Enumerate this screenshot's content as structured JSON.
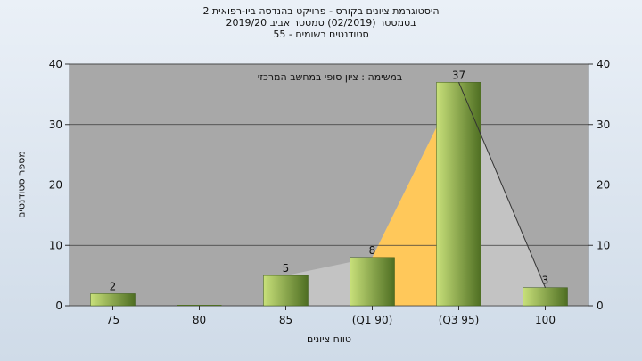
{
  "title_lines": [
    "היסטוגרמת ציונים בקורס - פרויקט בהנדסה ביו-רפואית 2",
    "בסמסטר  (02/2019)  סמסטר אביב 2019/20",
    "סטודנטים רשומים - 55"
  ],
  "chart_data": {
    "type": "bar",
    "title": "היסטוגרמת ציונים בקורס - פרויקט בהנדסה ביו-רפואית 2",
    "annotation": "במשימה : ציון סופי במחשב המרכזי",
    "xlabel": "טווח ציונים",
    "ylabel": "מספר סטודנטים",
    "categories": [
      "75",
      "80",
      "85",
      "(Q1 90)",
      "(Q3 95)",
      "100"
    ],
    "values": [
      2,
      0,
      5,
      8,
      37,
      3
    ],
    "data_labels": [
      "2",
      "",
      "5",
      "8",
      "37",
      "3"
    ],
    "ylim": [
      0,
      40
    ],
    "yticks": [
      0,
      10,
      20,
      30,
      40
    ],
    "ytick_labels": [
      "0",
      "10",
      "20",
      "30",
      "40"
    ],
    "grid": true,
    "secondary_y_axis": true,
    "colors": {
      "plot_bg": "#a8a8a8",
      "bar_light": "#c8e07a",
      "bar_dark": "#4e6e22",
      "area_light": "#c4c4c4",
      "area_quartile": "#ffc85a",
      "grid": "#3a3a3a",
      "line": "#333333"
    }
  }
}
